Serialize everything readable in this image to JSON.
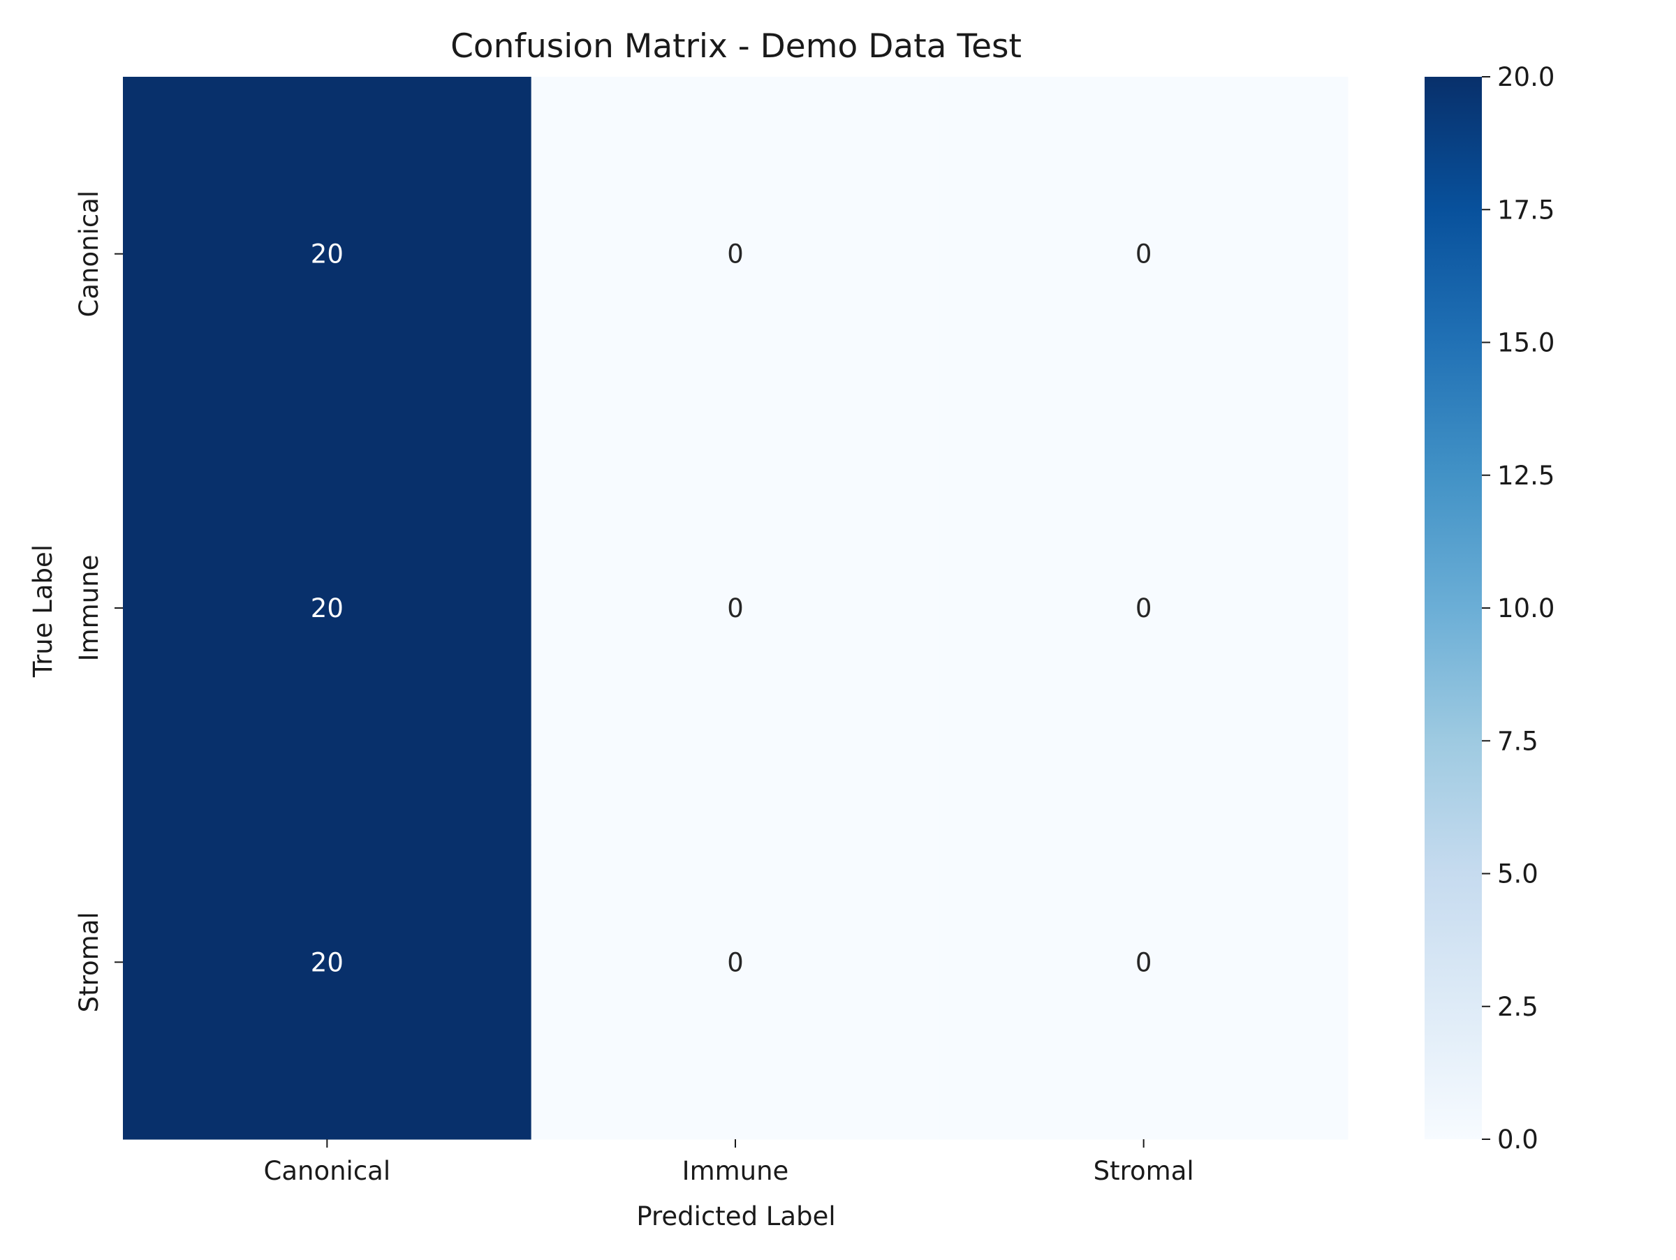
{
  "chart_data": {
    "type": "heatmap",
    "title": "Confusion Matrix - Demo Data Test",
    "xlabel": "Predicted Label",
    "ylabel": "True Label",
    "x_categories": [
      "Canonical",
      "Immune",
      "Stromal"
    ],
    "y_categories": [
      "Canonical",
      "Immune",
      "Stromal"
    ],
    "values": [
      [
        20,
        0,
        0
      ],
      [
        20,
        0,
        0
      ],
      [
        20,
        0,
        0
      ]
    ],
    "colormap": "Blues",
    "color_range": [
      0,
      20
    ],
    "colorbar_ticks": [
      "0.0",
      "2.5",
      "5.0",
      "7.5",
      "10.0",
      "12.5",
      "15.0",
      "17.5",
      "20.0"
    ],
    "colors": {
      "low": "#f7fbff",
      "high": "#08306b",
      "text_on_dark": "#ffffff",
      "text_on_light": "#262626"
    }
  }
}
